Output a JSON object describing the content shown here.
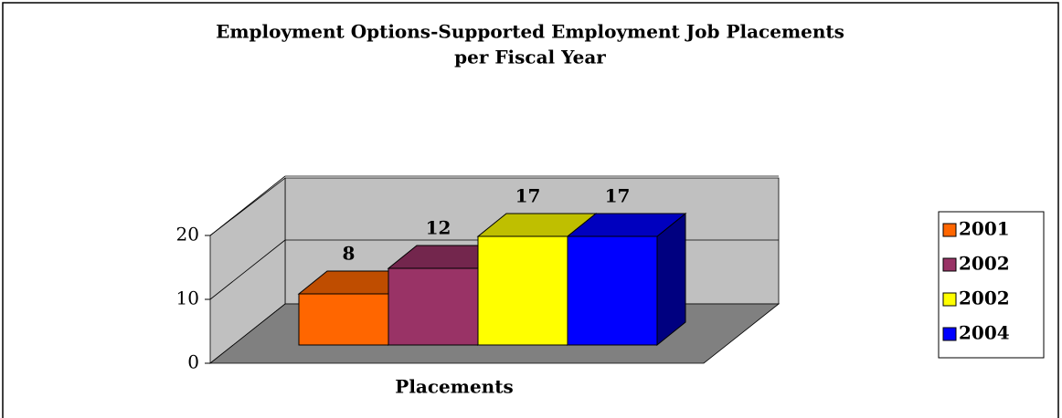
{
  "chart_data": {
    "type": "bar3d",
    "title": [
      "Employment Options-Supported Employment Job Placements",
      "per Fiscal Year"
    ],
    "categories": [
      "Placements"
    ],
    "series": [
      {
        "name": "2001",
        "color": "#ff6600",
        "values": [
          8
        ]
      },
      {
        "name": "2002",
        "color": "#993366",
        "values": [
          12
        ]
      },
      {
        "name": "2002",
        "color": "#ffff00",
        "values": [
          17
        ]
      },
      {
        "name": "2004",
        "color": "#0000ff",
        "values": [
          17
        ]
      }
    ],
    "ylim": [
      0,
      20
    ],
    "yticks": [
      0,
      10,
      20
    ],
    "grid": true,
    "legend": "right"
  }
}
